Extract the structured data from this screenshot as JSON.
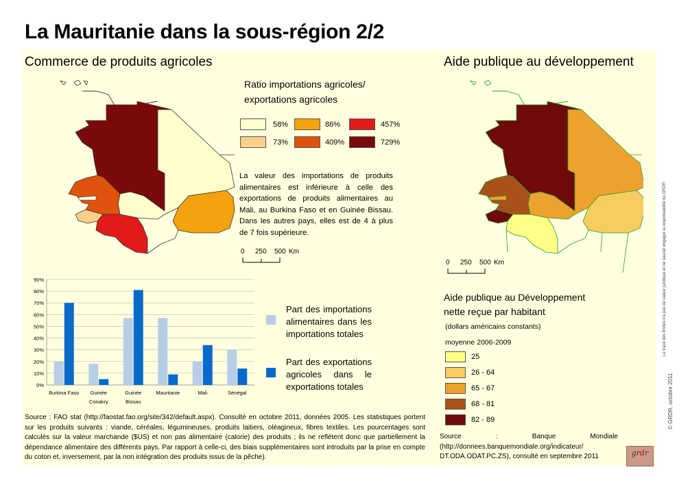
{
  "title": "La Mauritanie dans la sous-région 2/2",
  "left": {
    "section_title": "Commerce de produits agricoles",
    "legend_title_line1": "Ratio importations agricoles/",
    "legend_title_line2": "exportations agricoles",
    "legend": [
      {
        "label": "58%",
        "color": "#ffffcc"
      },
      {
        "label": "86%",
        "color": "#f5a20e"
      },
      {
        "label": "457%",
        "color": "#e11a1a"
      },
      {
        "label": "73%",
        "color": "#fdd08a"
      },
      {
        "label": "409%",
        "color": "#e0530f"
      },
      {
        "label": "729%",
        "color": "#7a0a0a"
      }
    ],
    "paragraph": "La valeur des importations de produits alimentaires est inférieure à celle des exportations de produits alimentaires au Mali, au Burkina Faso et en Guinée Bissau. Dans les autres pays, elles est de 4 à plus de 7 fois supérieure.",
    "scale": {
      "t0": "0",
      "t1": "250",
      "t2": "500",
      "unit": "Km"
    },
    "bar_legend": {
      "imports_label": "Part des importations alimentaires dans les importations totales",
      "exports_label": "Part des exportations agricoles dans le exportations totales",
      "imports_color": "#b8cde6",
      "exports_color": "#0a6acc"
    },
    "source": "Source : FAO stat (http://faostat.fao.org/site/342/default.aspx). Consulté en octobre 2011, données 2005. Les statistiques portent sur les produits suivants : viande, céréales, légumineuses, produits laitiers, oléagineux, fibres textiles. Les pourcentages sont calculés sur la valeur marchande ($US) et non pas alimentaire (calorie) des produits ; ils ne reflètent donc que partiellement la dépendance alimentaire des différents pays. Par rapport à celle-ci, des biais supplémentaires sont introduits par la prise en compte du coton et, inversement, par la non intégration des produits issus de la pêche)."
  },
  "right": {
    "section_title": "Aide publique au développement",
    "scale": {
      "t0": "0",
      "t1": "250",
      "t2": "500",
      "unit": "Km"
    },
    "legend_title_line1": "Aide publique au Développement",
    "legend_title_line2": "nette reçue par habitant",
    "legend_sub1": "(dollars américains constants)",
    "legend_sub2": "moyenne 2006-2009",
    "legend": [
      {
        "label": "25",
        "color": "#ffff88"
      },
      {
        "label": "26 - 64",
        "color": "#f7cc60"
      },
      {
        "label": "65 - 67",
        "color": "#eea22e"
      },
      {
        "label": "68 - 81",
        "color": "#a8521a"
      },
      {
        "label": "82 - 89",
        "color": "#6e0a0a"
      }
    ],
    "source": "Source : Banque Mondiale (http://donnees.banquemondiale.org/indicateur/ DT.ODA.ODAT.PC.ZS), consulté en septembre 2011"
  },
  "side_note": "Le tracé des limites n'a pas de valeur juridique et ne saurait engager la responsabilité du GRDR",
  "credit": "© GRDR, octobre 2011",
  "logo_text": "grdr",
  "chart_data": [
    {
      "type": "bar",
      "categories": [
        "Burkina Faso",
        "Guinée Conakry",
        "Guinée Bissau",
        "Mauritanie",
        "Mali",
        "Sénégal"
      ],
      "category_lines": [
        [
          "Burkina Faso"
        ],
        [
          "Guinée",
          "Conakry"
        ],
        [
          "Guinée",
          "Bissau"
        ],
        [
          "Mauritanie"
        ],
        [
          "Mali"
        ],
        [
          "Sénégal"
        ]
      ],
      "series": [
        {
          "name": "Part des importations alimentaires dans les importations totales",
          "values": [
            20,
            18,
            57,
            57,
            20,
            30
          ]
        },
        {
          "name": "Part des exportations agricoles dans le exportations totales",
          "values": [
            70,
            5,
            81,
            9,
            34,
            14
          ]
        }
      ],
      "yticks": [
        "0%",
        "10%",
        "20%",
        "30%",
        "40%",
        "50%",
        "60%",
        "70%",
        "80%",
        "90%"
      ],
      "ylim": [
        0,
        90
      ],
      "grid": true,
      "legend_position": "right"
    },
    {
      "type": "map",
      "map_legend": "Ratio importations agricoles/ exportations agricoles"
    },
    {
      "type": "map",
      "map_legend": "Aide publique au Développement nette reçue par habitant"
    }
  ]
}
